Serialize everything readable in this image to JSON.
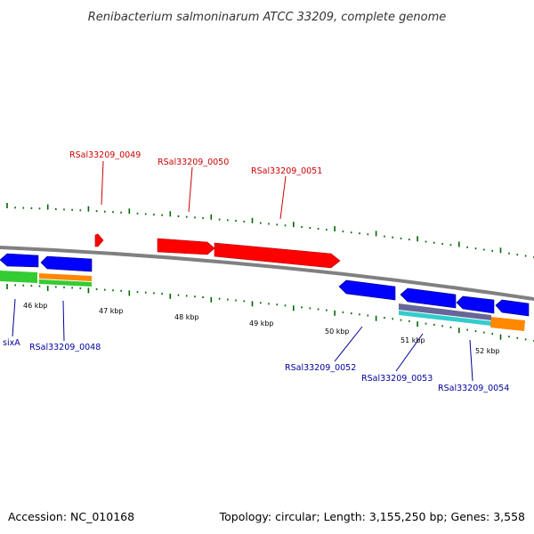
{
  "title": "Renibacterium salmoninarum ATCC 33209, complete genome",
  "accession_text": "Accession: NC_010168",
  "topology_text": "Topology: circular; Length: 3,155,250 bp; Genes: 3,558",
  "scale_labels": [
    "46 kbp",
    "47 kbp",
    "48 kbp",
    "49 kbp",
    "50 kbp",
    "51 kbp",
    "52 kbp"
  ],
  "forward_gene_labels": [
    "RSal33209_0049",
    "RSal33209_0050",
    "RSal33209_0051"
  ],
  "reverse_gene_labels": [
    "sixA",
    "RSal33209_0048",
    "RSal33209_0052",
    "RSal33209_0053",
    "RSal33209_0054"
  ],
  "colors": {
    "forward_gene": "#ff0000",
    "reverse_gene": "#0000ff",
    "forward_label": "#cc0000",
    "reverse_label": "#000099",
    "backbone": "#808080",
    "tick": "#006600",
    "feature_green": "#33cc33",
    "feature_orange": "#ff8800",
    "feature_cyan": "#33cccc",
    "feature_slate": "#666699"
  },
  "icons": {
    "forward_gene": "right-arrow-icon",
    "reverse_gene": "left-arrow-icon"
  }
}
